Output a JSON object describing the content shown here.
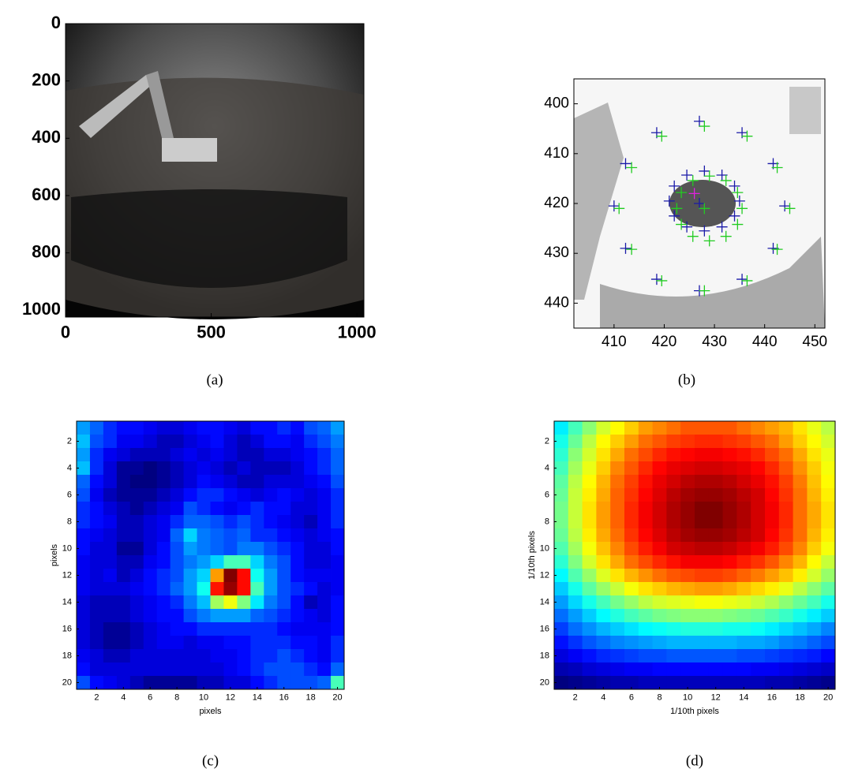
{
  "chart_data": [
    {
      "type": "image",
      "caption": "(a)",
      "xlim": [
        0,
        1024
      ],
      "ylim": [
        1024,
        0
      ],
      "xticks": [
        0,
        500,
        1000
      ],
      "yticks": [
        0,
        200,
        400,
        600,
        800,
        1000
      ]
    },
    {
      "type": "scatter",
      "caption": "(b)",
      "xlim": [
        402,
        452
      ],
      "ylim": [
        445,
        395
      ],
      "xticks": [
        410,
        420,
        430,
        440,
        450
      ],
      "yticks": [
        400,
        410,
        420,
        430,
        440
      ],
      "series": [
        {
          "color": "#1a1aa8",
          "x": [
            444,
            441.7,
            435.5,
            427,
            418.5,
            412.3,
            410,
            412.3,
            418.5,
            427,
            435.5,
            441.7,
            435,
            434,
            431.5,
            428,
            424.5,
            422,
            421,
            422,
            424.5,
            428,
            431.5,
            434,
            427
          ],
          "y": [
            420.5,
            412,
            405.8,
            403.5,
            405.8,
            412,
            420.5,
            429,
            435.2,
            437.5,
            435.2,
            429,
            419.5,
            416.5,
            414.3,
            413.5,
            414.3,
            416.5,
            419.5,
            422.5,
            424.7,
            425.5,
            424.7,
            422.5,
            420
          ]
        },
        {
          "color": "#22cc22",
          "x": [
            445,
            442.5,
            436.5,
            428,
            419.5,
            413.5,
            411,
            413.5,
            419.5,
            428,
            436.5,
            442.5,
            435.5,
            434.6,
            432.3,
            429,
            425.7,
            423.4,
            422.5,
            423.4,
            425.7,
            429,
            432.3,
            434.6,
            428
          ],
          "y": [
            421,
            412.8,
            406.5,
            404.5,
            406.5,
            412.8,
            421,
            429.2,
            435.5,
            437.5,
            435.5,
            429.2,
            421,
            417.8,
            415.4,
            414.5,
            415.4,
            417.8,
            421,
            424.2,
            426.6,
            427.5,
            426.6,
            424.2,
            421
          ]
        },
        {
          "color": "#e020e0",
          "x": [
            426
          ],
          "y": [
            418
          ]
        }
      ]
    },
    {
      "type": "heatmap",
      "caption": "(c)",
      "xlabel": "pixels",
      "ylabel": "pixels",
      "xlim": [
        0.5,
        20.5
      ],
      "ylim": [
        20.5,
        0.5
      ],
      "xticks": [
        2,
        4,
        6,
        8,
        10,
        12,
        14,
        16,
        18,
        20
      ],
      "yticks": [
        2,
        4,
        6,
        8,
        10,
        12,
        14,
        16,
        18,
        20
      ],
      "z": [
        [
          35,
          30,
          25,
          22,
          22,
          20,
          18,
          18,
          20,
          22,
          22,
          20,
          18,
          22,
          22,
          25,
          22,
          28,
          30,
          35
        ],
        [
          38,
          28,
          25,
          20,
          20,
          18,
          15,
          15,
          18,
          20,
          22,
          18,
          15,
          18,
          22,
          22,
          20,
          25,
          28,
          32
        ],
        [
          35,
          25,
          20,
          18,
          15,
          15,
          15,
          18,
          20,
          18,
          20,
          18,
          15,
          15,
          18,
          18,
          20,
          22,
          25,
          30
        ],
        [
          38,
          25,
          18,
          12,
          12,
          10,
          12,
          15,
          18,
          20,
          18,
          15,
          18,
          15,
          15,
          15,
          18,
          22,
          25,
          30
        ],
        [
          30,
          22,
          18,
          12,
          10,
          10,
          12,
          15,
          18,
          22,
          20,
          18,
          15,
          15,
          18,
          18,
          18,
          20,
          22,
          28
        ],
        [
          28,
          20,
          15,
          12,
          12,
          12,
          15,
          18,
          22,
          25,
          25,
          22,
          20,
          18,
          20,
          22,
          20,
          18,
          20,
          25
        ],
        [
          25,
          22,
          18,
          15,
          12,
          15,
          18,
          20,
          28,
          25,
          22,
          20,
          22,
          25,
          22,
          22,
          18,
          18,
          20,
          25
        ],
        [
          25,
          22,
          20,
          15,
          15,
          18,
          20,
          25,
          30,
          30,
          28,
          25,
          28,
          25,
          22,
          20,
          18,
          15,
          20,
          25
        ],
        [
          22,
          20,
          18,
          15,
          15,
          18,
          20,
          30,
          40,
          32,
          30,
          28,
          30,
          25,
          25,
          22,
          20,
          18,
          20,
          22
        ],
        [
          22,
          18,
          18,
          12,
          12,
          18,
          22,
          28,
          35,
          32,
          30,
          28,
          32,
          32,
          28,
          25,
          22,
          18,
          18,
          22
        ],
        [
          20,
          18,
          18,
          15,
          15,
          20,
          22,
          28,
          32,
          35,
          40,
          50,
          50,
          40,
          32,
          28,
          22,
          18,
          18,
          20
        ],
        [
          20,
          18,
          20,
          15,
          18,
          22,
          25,
          28,
          35,
          40,
          75,
          100,
          88,
          45,
          35,
          28,
          22,
          20,
          20,
          20
        ],
        [
          20,
          18,
          18,
          18,
          20,
          22,
          25,
          30,
          35,
          45,
          87,
          98,
          88,
          50,
          35,
          28,
          25,
          22,
          18,
          20
        ],
        [
          18,
          15,
          15,
          15,
          18,
          20,
          22,
          25,
          32,
          38,
          58,
          65,
          55,
          42,
          32,
          28,
          22,
          15,
          18,
          22
        ],
        [
          18,
          15,
          15,
          15,
          18,
          20,
          22,
          22,
          28,
          32,
          35,
          35,
          35,
          30,
          28,
          25,
          22,
          20,
          18,
          22
        ],
        [
          18,
          15,
          12,
          12,
          15,
          18,
          20,
          22,
          22,
          25,
          25,
          25,
          25,
          25,
          25,
          22,
          20,
          20,
          20,
          22
        ],
        [
          18,
          15,
          12,
          12,
          15,
          18,
          20,
          20,
          18,
          20,
          20,
          22,
          22,
          25,
          25,
          25,
          22,
          22,
          20,
          25
        ],
        [
          20,
          18,
          15,
          15,
          18,
          18,
          18,
          18,
          18,
          18,
          20,
          20,
          22,
          25,
          25,
          28,
          25,
          22,
          20,
          25
        ],
        [
          22,
          18,
          18,
          18,
          18,
          18,
          18,
          18,
          18,
          18,
          18,
          20,
          22,
          25,
          28,
          28,
          28,
          25,
          22,
          30
        ],
        [
          28,
          22,
          20,
          18,
          15,
          12,
          12,
          12,
          12,
          15,
          15,
          18,
          18,
          22,
          25,
          28,
          28,
          28,
          30,
          50
        ]
      ]
    },
    {
      "type": "heatmap",
      "caption": "(d)",
      "xlabel": "1/10th pixels",
      "ylabel": "1/10th pixels",
      "xlim": [
        0.5,
        20.5
      ],
      "ylim": [
        20.5,
        0.5
      ],
      "xticks": [
        2,
        4,
        6,
        8,
        10,
        12,
        14,
        16,
        18,
        20
      ],
      "yticks": [
        2,
        4,
        6,
        8,
        10,
        12,
        14,
        16,
        18,
        20
      ],
      "z": [
        [
          45,
          52,
          58,
          64,
          68,
          72,
          76,
          78,
          80,
          82,
          82,
          82,
          82,
          80,
          78,
          76,
          74,
          70,
          66,
          62
        ],
        [
          48,
          55,
          62,
          68,
          72,
          76,
          80,
          82,
          84,
          85,
          86,
          86,
          85,
          84,
          82,
          80,
          76,
          72,
          68,
          64
        ],
        [
          50,
          58,
          64,
          70,
          75,
          80,
          83,
          86,
          88,
          89,
          90,
          90,
          89,
          88,
          86,
          83,
          80,
          75,
          70,
          66
        ],
        [
          52,
          60,
          66,
          72,
          78,
          82,
          86,
          89,
          91,
          92,
          93,
          93,
          92,
          91,
          89,
          86,
          82,
          77,
          72,
          67
        ],
        [
          54,
          62,
          68,
          74,
          80,
          84,
          88,
          91,
          93,
          95,
          96,
          96,
          95,
          93,
          91,
          88,
          84,
          79,
          73,
          68
        ],
        [
          55,
          63,
          69,
          75,
          81,
          85,
          89,
          92,
          95,
          97,
          98,
          98,
          97,
          95,
          93,
          89,
          85,
          80,
          74,
          69
        ],
        [
          56,
          63,
          70,
          76,
          81,
          86,
          90,
          93,
          96,
          98,
          100,
          100,
          98,
          96,
          93,
          90,
          86,
          80,
          75,
          70
        ],
        [
          56,
          63,
          70,
          76,
          81,
          86,
          90,
          93,
          96,
          98,
          100,
          100,
          98,
          96,
          93,
          90,
          86,
          80,
          75,
          70
        ],
        [
          55,
          62,
          69,
          75,
          80,
          85,
          89,
          92,
          95,
          97,
          98,
          98,
          97,
          95,
          93,
          89,
          85,
          80,
          74,
          69
        ],
        [
          53,
          60,
          67,
          73,
          78,
          83,
          87,
          90,
          93,
          94,
          95,
          95,
          94,
          92,
          90,
          87,
          83,
          78,
          72,
          67
        ],
        [
          50,
          57,
          64,
          70,
          75,
          80,
          83,
          86,
          88,
          90,
          90,
          90,
          89,
          87,
          85,
          82,
          78,
          74,
          68,
          63
        ],
        [
          46,
          53,
          59,
          65,
          70,
          74,
          77,
          80,
          82,
          83,
          84,
          84,
          83,
          81,
          79,
          76,
          73,
          69,
          64,
          59
        ],
        [
          42,
          48,
          54,
          59,
          63,
          67,
          70,
          72,
          74,
          75,
          76,
          76,
          75,
          73,
          71,
          69,
          66,
          62,
          58,
          54
        ],
        [
          38,
          43,
          48,
          52,
          56,
          59,
          62,
          64,
          65,
          66,
          67,
          67,
          66,
          65,
          63,
          61,
          58,
          55,
          52,
          48
        ],
        [
          34,
          38,
          42,
          46,
          49,
          52,
          54,
          56,
          57,
          58,
          58,
          58,
          57,
          56,
          55,
          53,
          51,
          48,
          45,
          42
        ],
        [
          30,
          34,
          37,
          40,
          42,
          44,
          46,
          47,
          48,
          49,
          49,
          49,
          48,
          48,
          47,
          45,
          43,
          41,
          39,
          36
        ],
        [
          26,
          29,
          32,
          34,
          36,
          37,
          38,
          39,
          40,
          40,
          40,
          40,
          40,
          39,
          39,
          38,
          36,
          35,
          33,
          31
        ],
        [
          22,
          24,
          26,
          28,
          29,
          30,
          31,
          31,
          32,
          32,
          32,
          32,
          32,
          31,
          31,
          30,
          29,
          28,
          27,
          25
        ],
        [
          18,
          19,
          21,
          22,
          23,
          24,
          24,
          25,
          25,
          25,
          25,
          25,
          25,
          25,
          24,
          24,
          23,
          22,
          21,
          20
        ],
        [
          14,
          15,
          16,
          17,
          18,
          18,
          19,
          19,
          19,
          19,
          19,
          19,
          19,
          19,
          19,
          18,
          18,
          17,
          16,
          15
        ]
      ]
    }
  ]
}
